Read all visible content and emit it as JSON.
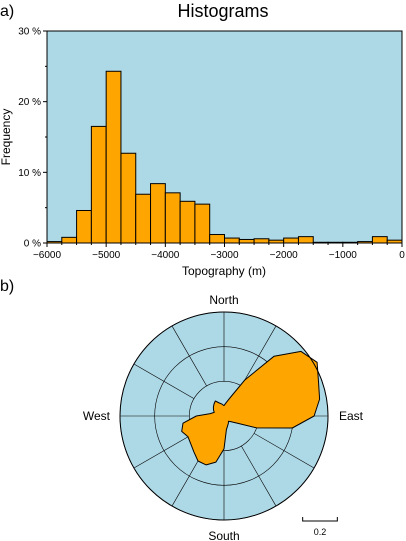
{
  "chart_data": [
    {
      "panel_label": "a)",
      "type": "bar",
      "title": "Histograms",
      "xlabel": "Topography (m)",
      "ylabel": "Frequency",
      "xlim": [
        -6000,
        0
      ],
      "ylim": [
        0,
        30
      ],
      "x_ticks": [
        -6000,
        -5000,
        -4000,
        -3000,
        -2000,
        -1000,
        0
      ],
      "x_tick_labels": [
        "−6000",
        "−5000",
        "−4000",
        "−3000",
        "−2000",
        "−1000",
        "0"
      ],
      "y_ticks": [
        0,
        10,
        20,
        30
      ],
      "y_tick_labels": [
        "0 %",
        "10 %",
        "20 %",
        "30 %"
      ],
      "bin_width": 250,
      "bin_starts": [
        -6000,
        -5750,
        -5500,
        -5250,
        -5000,
        -4750,
        -4500,
        -4250,
        -4000,
        -3750,
        -3500,
        -3250,
        -3000,
        -2750,
        -2500,
        -2250,
        -2000,
        -1750,
        -1500,
        -1250,
        -1000,
        -750,
        -500,
        -250
      ],
      "values": [
        0.2,
        0.8,
        4.6,
        16.5,
        24.3,
        12.7,
        6.9,
        8.4,
        7.1,
        5.9,
        5.5,
        1.2,
        0.7,
        0.5,
        0.6,
        0.4,
        0.7,
        0.9,
        0.1,
        0.1,
        0.1,
        0.2,
        0.9,
        0.4
      ],
      "background": "#add8e6",
      "bar_color": "#ffa500",
      "grid": false
    },
    {
      "panel_label": "b)",
      "type": "rose",
      "direction_labels": {
        "north": "North",
        "east": "East",
        "south": "South",
        "west": "West"
      },
      "scale_label": "0.2",
      "scale_value": 0.2,
      "rmax": 0.6,
      "ring_values": [
        0.2,
        0.4,
        0.6
      ],
      "spoke_angles": [
        0,
        30,
        60,
        90,
        120,
        150,
        180,
        210,
        240,
        270,
        300,
        330
      ],
      "azimuths": [
        0,
        10,
        20,
        30,
        40,
        50,
        60,
        70,
        80,
        90,
        100,
        110,
        120,
        130,
        140,
        150,
        160,
        170,
        180,
        190,
        200,
        210,
        220,
        230,
        240,
        250,
        260,
        270,
        280,
        290,
        300,
        310,
        320,
        330,
        340,
        350
      ],
      "radii": [
        0.06,
        0.08,
        0.12,
        0.24,
        0.45,
        0.58,
        0.62,
        0.58,
        0.56,
        0.52,
        0.4,
        0.2,
        0.08,
        0.05,
        0.04,
        0.05,
        0.06,
        0.08,
        0.19,
        0.27,
        0.3,
        0.3,
        0.27,
        0.25,
        0.24,
        0.26,
        0.24,
        0.16,
        0.08,
        0.06,
        0.07,
        0.08,
        0.09,
        0.1,
        0.08,
        0.07
      ],
      "background": "#add8e6",
      "fill_color": "#ffa500"
    }
  ]
}
